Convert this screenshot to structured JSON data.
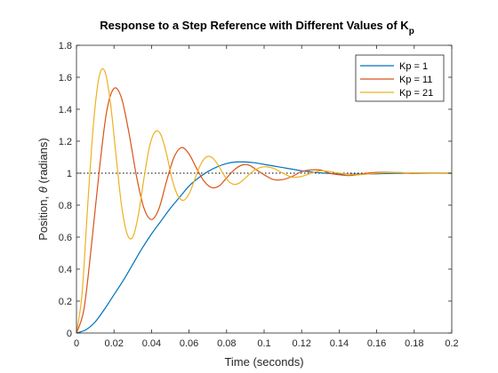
{
  "chart_data": {
    "type": "line",
    "title": "Response to a Step Reference with Different Values of K",
    "title_subscript": "p",
    "xlabel": "Time (seconds)",
    "ylabel_prefix": "Position, ",
    "ylabel_symbol": "θ",
    "ylabel_suffix": " (radians)",
    "xlim": [
      0,
      0.2
    ],
    "ylim": [
      0,
      1.8
    ],
    "x_ticks": [
      0,
      0.02,
      0.04,
      0.06,
      0.08,
      0.1,
      0.12,
      0.14,
      0.16,
      0.18,
      0.2
    ],
    "x_tick_labels": [
      "0",
      "0.02",
      "0.04",
      "0.06",
      "0.08",
      "0.1",
      "0.12",
      "0.14",
      "0.16",
      "0.18",
      "0.2"
    ],
    "y_ticks": [
      0,
      0.2,
      0.4,
      0.6,
      0.8,
      1,
      1.2,
      1.4,
      1.6,
      1.8
    ],
    "y_tick_labels": [
      "0",
      "0.2",
      "0.4",
      "0.6",
      "0.8",
      "1",
      "1.2",
      "1.4",
      "1.6",
      "1.8"
    ],
    "grid": false,
    "legend_position": "top-right",
    "reference_line": {
      "y": 1,
      "style": "dotted",
      "color": "#000000"
    },
    "series": [
      {
        "name": "Kp = 1",
        "color": "#0072BD",
        "x": [
          0,
          0.005,
          0.01,
          0.015,
          0.02,
          0.025,
          0.03,
          0.035,
          0.04,
          0.045,
          0.05,
          0.055,
          0.06,
          0.065,
          0.07,
          0.075,
          0.08,
          0.085,
          0.09,
          0.095,
          0.1,
          0.105,
          0.11,
          0.115,
          0.12,
          0.125,
          0.13,
          0.135,
          0.14,
          0.145,
          0.15,
          0.155,
          0.16,
          0.165,
          0.17,
          0.175,
          0.18,
          0.185,
          0.19,
          0.195,
          0.2
        ],
        "y": [
          0,
          0.02,
          0.07,
          0.15,
          0.24,
          0.33,
          0.43,
          0.53,
          0.62,
          0.7,
          0.78,
          0.85,
          0.92,
          0.97,
          1.01,
          1.04,
          1.06,
          1.07,
          1.07,
          1.065,
          1.055,
          1.045,
          1.035,
          1.025,
          1.015,
          1.008,
          1.002,
          0.998,
          0.995,
          0.994,
          0.994,
          0.995,
          0.996,
          0.998,
          0.999,
          1.0,
          1.001,
          1.001,
          1.001,
          1.0,
          1.0
        ]
      },
      {
        "name": "Kp = 11",
        "color": "#D95319",
        "x": [
          0,
          0.004,
          0.008,
          0.012,
          0.016,
          0.02,
          0.024,
          0.028,
          0.032,
          0.036,
          0.04,
          0.044,
          0.048,
          0.052,
          0.056,
          0.06,
          0.064,
          0.068,
          0.072,
          0.076,
          0.08,
          0.084,
          0.088,
          0.092,
          0.096,
          0.1,
          0.105,
          0.11,
          0.115,
          0.12,
          0.125,
          0.13,
          0.135,
          0.14,
          0.145,
          0.15,
          0.155,
          0.16,
          0.17,
          0.18,
          0.19,
          0.2
        ],
        "y": [
          0,
          0.15,
          0.55,
          1.0,
          1.38,
          1.53,
          1.47,
          1.25,
          0.98,
          0.78,
          0.71,
          0.78,
          0.95,
          1.1,
          1.16,
          1.12,
          1.03,
          0.95,
          0.91,
          0.92,
          0.97,
          1.02,
          1.05,
          1.05,
          1.02,
          0.99,
          0.96,
          0.96,
          0.98,
          1.01,
          1.02,
          1.02,
          1.0,
          0.99,
          0.985,
          0.99,
          1.0,
          1.005,
          1.005,
          0.998,
          1.0,
          1.0
        ]
      },
      {
        "name": "Kp = 21",
        "color": "#EDB120",
        "x": [
          0,
          0.003,
          0.006,
          0.009,
          0.012,
          0.015,
          0.018,
          0.021,
          0.024,
          0.027,
          0.03,
          0.033,
          0.036,
          0.039,
          0.042,
          0.045,
          0.048,
          0.051,
          0.054,
          0.057,
          0.06,
          0.063,
          0.066,
          0.069,
          0.072,
          0.075,
          0.078,
          0.081,
          0.084,
          0.087,
          0.09,
          0.095,
          0.1,
          0.105,
          0.11,
          0.115,
          0.12,
          0.125,
          0.13,
          0.135,
          0.14,
          0.15,
          0.16,
          0.17,
          0.18,
          0.19,
          0.2
        ],
        "y": [
          0,
          0.25,
          0.8,
          1.3,
          1.6,
          1.64,
          1.45,
          1.12,
          0.8,
          0.62,
          0.6,
          0.74,
          0.97,
          1.17,
          1.26,
          1.24,
          1.12,
          0.96,
          0.86,
          0.83,
          0.87,
          0.96,
          1.05,
          1.1,
          1.1,
          1.06,
          1.0,
          0.95,
          0.93,
          0.94,
          0.97,
          1.02,
          1.04,
          1.03,
          1.0,
          0.975,
          0.98,
          1.0,
          1.015,
          1.01,
          1.0,
          0.99,
          1.0,
          1.005,
          1.0,
          1.0,
          1.0
        ]
      }
    ]
  }
}
